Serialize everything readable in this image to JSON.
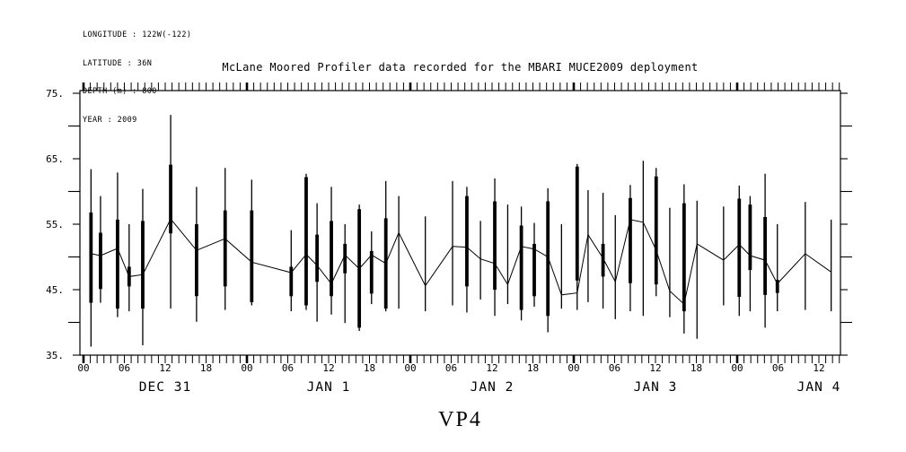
{
  "metadata": {
    "longitude": "LONGITUDE : 122W(-122)",
    "latitude": "LATITUDE : 36N",
    "depth": "DEPTH (m) : 800",
    "year": "YEAR : 2009"
  },
  "title": "McLane Moored Profiler data recorded for the MBARI MUCE2009 deployment",
  "profile_label": "VP4",
  "colors": {
    "foreground": "#000000",
    "background": "#ffffff"
  },
  "chart_data": {
    "type": "line",
    "subtype": "time series of profile midpoints with vertical min-max whiskers and thick data-range bars",
    "title": "McLane Moored Profiler data recorded for the MBARI MUCE2009 deployment",
    "xlabel": "",
    "ylabel": "",
    "ylim": [
      35,
      75
    ],
    "grid": false,
    "legend": "none",
    "x_axis": {
      "start_label": "DEC 31 00",
      "end_hours": 111,
      "minor_tick_interval_hours": 1,
      "labeled_tick_interval_hours": 6,
      "bold_tick_hours": [
        0,
        24,
        48,
        72,
        96
      ]
    },
    "y_ticks": [
      {
        "v": 75,
        "label": "75."
      },
      {
        "v": 65,
        "label": "65."
      },
      {
        "v": 55,
        "label": "55."
      },
      {
        "v": 45,
        "label": "45."
      },
      {
        "v": 35,
        "label": "35."
      }
    ],
    "x_hour_ticks": [
      {
        "t": 0,
        "label": "00"
      },
      {
        "t": 6,
        "label": "06"
      },
      {
        "t": 12,
        "label": "12"
      },
      {
        "t": 18,
        "label": "18"
      },
      {
        "t": 24,
        "label": "00"
      },
      {
        "t": 30,
        "label": "06"
      },
      {
        "t": 36,
        "label": "12"
      },
      {
        "t": 42,
        "label": "18"
      },
      {
        "t": 48,
        "label": "00"
      },
      {
        "t": 54,
        "label": "06"
      },
      {
        "t": 60,
        "label": "12"
      },
      {
        "t": 66,
        "label": "18"
      },
      {
        "t": 72,
        "label": "00"
      },
      {
        "t": 78,
        "label": "06"
      },
      {
        "t": 84,
        "label": "12"
      },
      {
        "t": 90,
        "label": "18"
      },
      {
        "t": 96,
        "label": "00"
      },
      {
        "t": 102,
        "label": "06"
      },
      {
        "t": 108,
        "label": "12"
      }
    ],
    "x_day_labels": [
      {
        "t": 12,
        "label": "DEC 31"
      },
      {
        "t": 36,
        "label": "JAN  1"
      },
      {
        "t": 60,
        "label": "JAN  2"
      },
      {
        "t": 84,
        "label": "JAN  3"
      },
      {
        "t": 108,
        "label": "JAN  4"
      }
    ],
    "points": [
      {
        "t": 1.1,
        "lo": 36.3,
        "hi": 63.4,
        "blo": 43.0,
        "bhi": 56.8,
        "c": 50.5
      },
      {
        "t": 2.5,
        "lo": 43.0,
        "hi": 59.3,
        "blo": 45.1,
        "bhi": 53.7,
        "c": 50.2
      },
      {
        "t": 5.0,
        "lo": 40.8,
        "hi": 62.9,
        "blo": 42.1,
        "bhi": 55.7,
        "c": 51.3
      },
      {
        "t": 6.7,
        "lo": 41.7,
        "hi": 55.0,
        "blo": 45.5,
        "bhi": 48.5,
        "c": 47.0
      },
      {
        "t": 8.7,
        "lo": 36.5,
        "hi": 60.4,
        "blo": 42.1,
        "bhi": 55.5,
        "c": 47.3
      },
      {
        "t": 12.8,
        "lo": 42.1,
        "hi": 71.7,
        "blo": 53.6,
        "bhi": 64.1,
        "c": 55.8
      },
      {
        "t": 16.6,
        "lo": 40.1,
        "hi": 60.7,
        "blo": 44.0,
        "bhi": 55.0,
        "c": 51.0
      },
      {
        "t": 20.8,
        "lo": 41.9,
        "hi": 63.6,
        "blo": 45.5,
        "bhi": 57.1,
        "c": 52.8
      },
      {
        "t": 24.7,
        "lo": 42.6,
        "hi": 61.8,
        "blo": 43.1,
        "bhi": 57.1,
        "c": 49.2
      },
      {
        "t": 30.5,
        "lo": 41.7,
        "hi": 54.1,
        "blo": 44.0,
        "bhi": 48.5,
        "c": 47.6
      },
      {
        "t": 32.7,
        "lo": 41.9,
        "hi": 62.7,
        "blo": 42.6,
        "bhi": 62.2,
        "c": 50.4
      },
      {
        "t": 34.3,
        "lo": 40.1,
        "hi": 58.2,
        "blo": 46.2,
        "bhi": 53.4,
        "c": 48.7
      },
      {
        "t": 36.4,
        "lo": 41.2,
        "hi": 60.7,
        "blo": 44.0,
        "bhi": 55.5,
        "c": 45.9
      },
      {
        "t": 38.4,
        "lo": 39.9,
        "hi": 55.0,
        "blo": 47.5,
        "bhi": 52.0,
        "c": 50.3
      },
      {
        "t": 40.5,
        "lo": 38.7,
        "hi": 58.0,
        "blo": 39.2,
        "bhi": 57.3,
        "c": 48.2
      },
      {
        "t": 42.3,
        "lo": 42.8,
        "hi": 53.9,
        "blo": 44.4,
        "bhi": 50.9,
        "c": 50.3
      },
      {
        "t": 44.4,
        "lo": 41.7,
        "hi": 61.6,
        "blo": 42.1,
        "bhi": 55.9,
        "c": 49.0
      },
      {
        "t": 46.3,
        "lo": 42.1,
        "hi": 59.3,
        "blo": null,
        "bhi": null,
        "c": 53.7
      },
      {
        "t": 50.2,
        "lo": 41.7,
        "hi": 56.2,
        "blo": null,
        "bhi": null,
        "c": 45.6
      },
      {
        "t": 54.2,
        "lo": 42.6,
        "hi": 61.6,
        "blo": null,
        "bhi": null,
        "c": 51.6
      },
      {
        "t": 56.3,
        "lo": 41.5,
        "hi": 60.7,
        "blo": 45.5,
        "bhi": 59.3,
        "c": 51.5
      },
      {
        "t": 58.3,
        "lo": 43.5,
        "hi": 55.5,
        "blo": null,
        "bhi": null,
        "c": 49.7
      },
      {
        "t": 60.4,
        "lo": 41.0,
        "hi": 62.0,
        "blo": 45.0,
        "bhi": 58.5,
        "c": 49.0
      },
      {
        "t": 62.3,
        "lo": 42.8,
        "hi": 58.0,
        "blo": null,
        "bhi": null,
        "c": 45.8
      },
      {
        "t": 64.3,
        "lo": 40.3,
        "hi": 57.7,
        "blo": 41.9,
        "bhi": 54.8,
        "c": 51.6
      },
      {
        "t": 66.2,
        "lo": 42.4,
        "hi": 55.2,
        "blo": 44.0,
        "bhi": 52.0,
        "c": 51.2
      },
      {
        "t": 68.2,
        "lo": 38.5,
        "hi": 60.5,
        "blo": 41.0,
        "bhi": 58.5,
        "c": 50.0
      },
      {
        "t": 70.2,
        "lo": 42.1,
        "hi": 55.0,
        "blo": null,
        "bhi": null,
        "c": 44.2
      },
      {
        "t": 72.5,
        "lo": 41.9,
        "hi": 64.2,
        "blo": 46.4,
        "bhi": 63.8,
        "c": 44.5
      },
      {
        "t": 74.1,
        "lo": 43.1,
        "hi": 60.2,
        "blo": null,
        "bhi": null,
        "c": 53.4
      },
      {
        "t": 76.3,
        "lo": 42.1,
        "hi": 59.8,
        "blo": 47.0,
        "bhi": 52.0,
        "c": 49.8
      },
      {
        "t": 78.1,
        "lo": 40.5,
        "hi": 56.4,
        "blo": null,
        "bhi": null,
        "c": 46.2
      },
      {
        "t": 80.3,
        "lo": 41.7,
        "hi": 61.0,
        "blo": 46.0,
        "bhi": 59.0,
        "c": 55.7
      },
      {
        "t": 82.2,
        "lo": 41.0,
        "hi": 64.7,
        "blo": null,
        "bhi": null,
        "c": 55.3
      },
      {
        "t": 84.1,
        "lo": 44.0,
        "hi": 63.6,
        "blo": 45.8,
        "bhi": 62.3,
        "c": 51.0
      },
      {
        "t": 86.1,
        "lo": 40.8,
        "hi": 57.5,
        "blo": null,
        "bhi": null,
        "c": 44.8
      },
      {
        "t": 88.2,
        "lo": 38.3,
        "hi": 61.1,
        "blo": 41.7,
        "bhi": 58.2,
        "c": 42.8
      },
      {
        "t": 90.1,
        "lo": 37.5,
        "hi": 58.6,
        "blo": null,
        "bhi": null,
        "c": 52.0
      },
      {
        "t": 94.0,
        "lo": 42.6,
        "hi": 57.7,
        "blo": null,
        "bhi": null,
        "c": 49.5
      },
      {
        "t": 96.3,
        "lo": 41.0,
        "hi": 60.9,
        "blo": 43.9,
        "bhi": 58.9,
        "c": 51.9
      },
      {
        "t": 97.9,
        "lo": 41.7,
        "hi": 59.3,
        "blo": 48.0,
        "bhi": 58.0,
        "c": 50.2
      },
      {
        "t": 100.1,
        "lo": 39.2,
        "hi": 62.7,
        "blo": 44.2,
        "bhi": 56.1,
        "c": 49.5
      },
      {
        "t": 101.9,
        "lo": 41.7,
        "hi": 55.0,
        "blo": 44.5,
        "bhi": 46.5,
        "c": 45.9
      },
      {
        "t": 106.0,
        "lo": 41.9,
        "hi": 58.4,
        "blo": null,
        "bhi": null,
        "c": 50.5
      },
      {
        "t": 109.8,
        "lo": 41.7,
        "hi": 55.7,
        "blo": null,
        "bhi": null,
        "c": 47.7
      }
    ]
  }
}
